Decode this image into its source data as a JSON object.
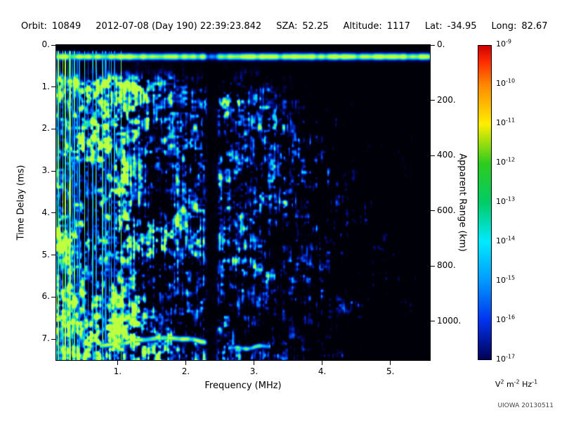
{
  "header": {
    "fields": [
      {
        "label": "Orbit:",
        "value": "10849"
      },
      {
        "label": "",
        "value": "2012-07-08 (Day 190) 22:39:23.842"
      },
      {
        "label": "SZA:",
        "value": "52.25"
      },
      {
        "label": "Altitude:",
        "value": "1117"
      },
      {
        "label": "Lat:",
        "value": "-34.95"
      },
      {
        "label": "Long:",
        "value": "82.67"
      }
    ]
  },
  "watermark": "UIOWA 20130511",
  "chart_data": {
    "type": "heatmap",
    "description": "Radar sounder ionogram spectrogram: electric field spectral density vs frequency and time delay",
    "x_axis": {
      "label": "Frequency (MHz)",
      "range": [
        0.1,
        5.58
      ],
      "ticks": [
        {
          "value": 1,
          "label": "1."
        },
        {
          "value": 2,
          "label": "2."
        },
        {
          "value": 3,
          "label": "3."
        },
        {
          "value": 4,
          "label": "4."
        },
        {
          "value": 5,
          "label": "5."
        }
      ]
    },
    "y_axis_left": {
      "label": "Time Delay (ms)",
      "range": [
        0,
        7.5
      ],
      "ticks": [
        {
          "value": 0,
          "label": "0."
        },
        {
          "value": 1,
          "label": "1."
        },
        {
          "value": 2,
          "label": "2."
        },
        {
          "value": 3,
          "label": "3."
        },
        {
          "value": 4,
          "label": "4."
        },
        {
          "value": 5,
          "label": "5."
        },
        {
          "value": 6,
          "label": "6."
        },
        {
          "value": 7,
          "label": "7."
        }
      ]
    },
    "y_axis_right": {
      "label": "Apparent Range (km)",
      "range": [
        0,
        1140
      ],
      "ticks": [
        {
          "value": 0,
          "label": "0."
        },
        {
          "value": 200,
          "label": "200."
        },
        {
          "value": 400,
          "label": "400."
        },
        {
          "value": 600,
          "label": "600."
        },
        {
          "value": 800,
          "label": "800."
        },
        {
          "value": 1000,
          "label": "1000."
        }
      ]
    },
    "colorbar": {
      "scale": "log",
      "range_exponents": [
        -9,
        -17
      ],
      "tick_labels": [
        {
          "base": "10",
          "exp": "-9"
        },
        {
          "base": "10",
          "exp": "-10"
        },
        {
          "base": "10",
          "exp": "-11"
        },
        {
          "base": "10",
          "exp": "-12"
        },
        {
          "base": "10",
          "exp": "-13"
        },
        {
          "base": "10",
          "exp": "-14"
        },
        {
          "base": "10",
          "exp": "-15"
        },
        {
          "base": "10",
          "exp": "-16"
        },
        {
          "base": "10",
          "exp": "-17"
        }
      ],
      "unit_parts": [
        {
          "base": "V",
          "exp": "2"
        },
        {
          "base": "m",
          "exp": "-2"
        },
        {
          "base": "Hz",
          "exp": "-1"
        }
      ],
      "gradient_stops": [
        {
          "pos": 0,
          "color": "#cc0000"
        },
        {
          "pos": 0.05,
          "color": "#ff2a00"
        },
        {
          "pos": 0.125,
          "color": "#ff8800"
        },
        {
          "pos": 0.25,
          "color": "#ffee00"
        },
        {
          "pos": 0.375,
          "color": "#2ecc1e"
        },
        {
          "pos": 0.5,
          "color": "#00cc66"
        },
        {
          "pos": 0.625,
          "color": "#00eaff"
        },
        {
          "pos": 0.75,
          "color": "#0099ff"
        },
        {
          "pos": 0.875,
          "color": "#0033ee"
        },
        {
          "pos": 1,
          "color": "#000055"
        }
      ]
    },
    "features": {
      "top_blank_band_ms": [
        0,
        0.13
      ],
      "surface_return_band_ms": [
        0.2,
        0.4
      ],
      "post_surface_gap_ms": [
        0.45,
        1.0
      ],
      "plasma_oscillation_stripes_max_mhz": 1.2,
      "interference_notch_mhz": [
        2.26,
        2.45
      ],
      "ionosphere_echo_trace": {
        "time_delay_ms": 7.05,
        "freq_range_mhz": [
          0.73,
          2.43
        ],
        "second_segment_mhz": [
          2.62,
          3.24
        ]
      },
      "diffuse_noise": "blue speckle strongest below 3 MHz, fading toward 5.5 MHz; dark upper-right corner"
    }
  }
}
